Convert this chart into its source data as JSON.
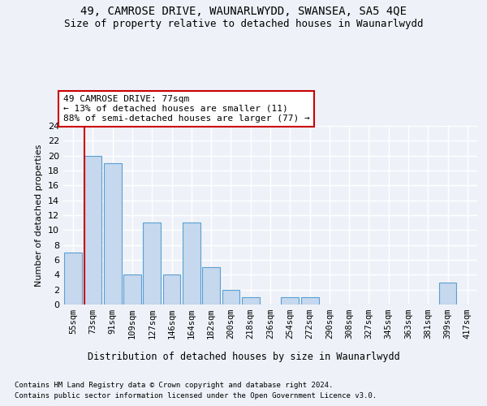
{
  "title": "49, CAMROSE DRIVE, WAUNARLWYDD, SWANSEA, SA5 4QE",
  "subtitle": "Size of property relative to detached houses in Waunarlwydd",
  "xlabel": "Distribution of detached houses by size in Waunarlwydd",
  "ylabel": "Number of detached properties",
  "categories": [
    "55sqm",
    "73sqm",
    "91sqm",
    "109sqm",
    "127sqm",
    "146sqm",
    "164sqm",
    "182sqm",
    "200sqm",
    "218sqm",
    "236sqm",
    "254sqm",
    "272sqm",
    "290sqm",
    "308sqm",
    "327sqm",
    "345sqm",
    "363sqm",
    "381sqm",
    "399sqm",
    "417sqm"
  ],
  "values": [
    7,
    20,
    19,
    4,
    11,
    4,
    11,
    5,
    2,
    1,
    0,
    1,
    1,
    0,
    0,
    0,
    0,
    0,
    0,
    3,
    0
  ],
  "bar_color_normal": "#c5d8ed",
  "bar_edge_color": "#5a9fd4",
  "annotation_text": "49 CAMROSE DRIVE: 77sqm\n← 13% of detached houses are smaller (11)\n88% of semi-detached houses are larger (77) →",
  "annotation_box_color": "#ffffff",
  "annotation_box_edge": "#cc0000",
  "vline_color": "#cc0000",
  "vline_x": 0.575,
  "footer_line1": "Contains HM Land Registry data © Crown copyright and database right 2024.",
  "footer_line2": "Contains public sector information licensed under the Open Government Licence v3.0.",
  "ylim": [
    0,
    24
  ],
  "yticks": [
    0,
    2,
    4,
    6,
    8,
    10,
    12,
    14,
    16,
    18,
    20,
    22,
    24
  ],
  "background_color": "#eef2f8",
  "grid_color": "#ffffff",
  "title_fontsize": 10,
  "subtitle_fontsize": 9,
  "ylabel_fontsize": 8,
  "tick_fontsize": 8,
  "xtick_fontsize": 7.5,
  "annotation_fontsize": 8,
  "footer_fontsize": 6.5
}
